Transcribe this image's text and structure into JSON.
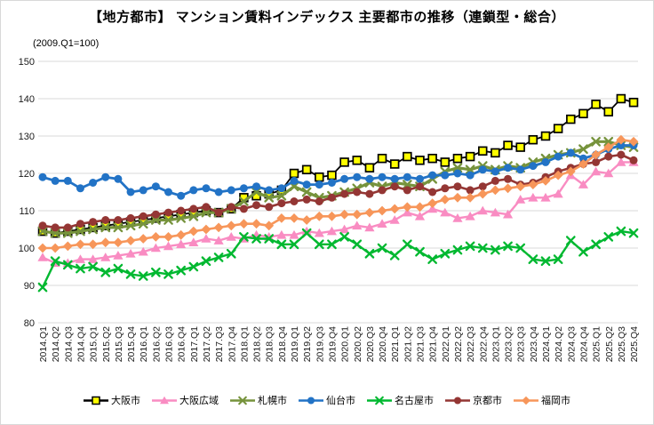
{
  "title": "【地方都市】 マンション賃料インデックス  主要都市の推移（連鎖型・総合）",
  "subtitle": "(2009.Q1=100)",
  "chart_data": {
    "type": "line",
    "title": "【地方都市】 マンション賃料インデックス  主要都市の推移（連鎖型・総合）",
    "axis_note": "(2009.Q1=100)",
    "ylim": [
      80,
      150
    ],
    "y_ticks": [
      80,
      90,
      100,
      110,
      120,
      130,
      140,
      150
    ],
    "grid": "horizontal",
    "legend_position": "bottom",
    "x_labels": [
      "2014.Q1",
      "2014.Q2",
      "2014.Q3",
      "2014.Q4",
      "2015.Q1",
      "2015.Q2",
      "2015.Q3",
      "2015.Q4",
      "2016.Q1",
      "2016.Q2",
      "2016.Q3",
      "2016.Q4",
      "2017.Q1",
      "2017.Q2",
      "2017.Q3",
      "2017.Q4",
      "2018.Q1",
      "2018.Q2",
      "2018.Q3",
      "2018.Q4",
      "2019.Q1",
      "2019.Q2",
      "2019.Q3",
      "2019.Q4",
      "2020.Q1",
      "2020.Q2",
      "2020.Q3",
      "2020.Q4",
      "2021.Q1",
      "2021.Q2",
      "2021.Q3",
      "2021.Q4",
      "2022.Q1",
      "2022.Q2",
      "2022.Q3",
      "2022.Q4",
      "2023.Q1",
      "2023.Q2",
      "2023.Q3",
      "2023.Q4",
      "2024.Q1",
      "2024.Q2",
      "2024.Q3",
      "2024.Q4",
      "2025.Q1",
      "2025.Q2",
      "2025.Q3",
      "2025.Q4"
    ],
    "series": [
      {
        "key": "osaka-city",
        "name": "大阪市",
        "color": "#000000",
        "marker": "square",
        "marker_fill": "#FFFF00",
        "values": [
          104.5,
          104,
          104.5,
          105,
          105.5,
          106,
          106.5,
          107,
          107.5,
          108,
          108.5,
          109,
          109.5,
          110,
          109.5,
          110.5,
          113.5,
          114,
          114.5,
          115.5,
          120,
          121,
          119,
          119.5,
          123,
          123.5,
          121.5,
          124,
          122.5,
          124.5,
          123.5,
          124,
          123,
          124,
          124.5,
          126,
          125.5,
          127.5,
          127,
          129,
          130,
          132,
          134.5,
          136,
          138.5,
          136.5,
          140,
          139
        ]
      },
      {
        "key": "osaka-region",
        "name": "大阪広域",
        "color": "#F98CC2",
        "marker": "triangle",
        "values": [
          97.5,
          96,
          96,
          97,
          97,
          97.5,
          98,
          98.5,
          99,
          100,
          100.5,
          101,
          101.5,
          102.5,
          102,
          103,
          102.5,
          103.5,
          103,
          103.5,
          103.5,
          104.5,
          104,
          104.5,
          105,
          106,
          105.5,
          106.5,
          107.5,
          109.5,
          108.5,
          110.5,
          109.5,
          108,
          108.5,
          110,
          109.5,
          109,
          113,
          113.5,
          113.5,
          114.5,
          119.5,
          117,
          120.5,
          120,
          123,
          123
        ]
      },
      {
        "key": "sapporo",
        "name": "札幌市",
        "color": "#76933C",
        "marker": "x",
        "values": [
          104.5,
          104,
          104,
          104.5,
          105,
          105.5,
          105.5,
          106,
          106.5,
          107.5,
          107.5,
          108,
          108.5,
          109.5,
          109.5,
          110.5,
          112.5,
          115,
          113.5,
          114,
          116.5,
          115,
          113.5,
          114,
          115,
          116,
          117.5,
          116.5,
          117.5,
          117,
          116.5,
          118.5,
          120.5,
          121.5,
          121,
          122,
          121,
          122,
          121.5,
          123,
          124,
          125,
          125.5,
          126.5,
          128.5,
          128.5,
          127.5,
          127
        ]
      },
      {
        "key": "sendai",
        "name": "仙台市",
        "color": "#2273C6",
        "marker": "circle",
        "values": [
          119,
          118,
          118,
          116,
          117.5,
          119,
          118.5,
          115,
          115.5,
          116.5,
          115,
          114,
          115.5,
          116,
          115,
          115.5,
          116,
          116.5,
          115.5,
          116,
          118,
          117,
          117,
          117.5,
          118.5,
          119,
          118.5,
          119,
          118.5,
          119,
          118.5,
          119.5,
          119.5,
          120,
          119.5,
          121,
          120.5,
          121.5,
          121,
          122,
          123,
          124.5,
          125.5,
          124,
          125,
          126.5,
          127.5,
          127.5
        ]
      },
      {
        "key": "nagoya",
        "name": "名古屋市",
        "color": "#00B830",
        "marker": "x",
        "values": [
          89.5,
          96.5,
          95.5,
          94.5,
          95,
          93.5,
          94.5,
          93,
          92.5,
          93.5,
          93,
          94,
          95,
          96.5,
          97.5,
          98.5,
          103,
          102.5,
          102.5,
          101,
          101,
          104,
          101,
          101,
          103,
          101,
          98.5,
          100,
          98,
          101,
          99,
          97,
          98.5,
          99.5,
          100.5,
          100,
          99.5,
          100.5,
          100,
          97,
          96.5,
          97,
          102,
          99,
          101,
          103,
          104.5,
          104
        ]
      },
      {
        "key": "kyoto",
        "name": "京都市",
        "color": "#943634",
        "marker": "circle",
        "values": [
          106,
          105.5,
          105.5,
          106.5,
          107,
          107.5,
          107.5,
          108,
          108.5,
          109,
          109.5,
          110,
          110.5,
          111,
          109.5,
          111,
          110.5,
          111.5,
          111,
          112,
          112.5,
          113,
          112.5,
          113.5,
          114.5,
          115,
          114.5,
          115.5,
          116.5,
          115.5,
          116.5,
          115,
          116,
          116.5,
          115.5,
          116.5,
          118,
          118.5,
          117,
          117.5,
          119,
          120.5,
          121.5,
          122.5,
          123,
          124.5,
          125,
          123.5
        ]
      },
      {
        "key": "fukuoka",
        "name": "福岡市",
        "color": "#F7965A",
        "marker": "diamond",
        "values": [
          100,
          100,
          100.5,
          101,
          101,
          101.5,
          101.5,
          102,
          102.5,
          103,
          103,
          103.5,
          104.5,
          105,
          105.5,
          106,
          106.5,
          106.5,
          106,
          108,
          108,
          107.5,
          108.5,
          108.5,
          109,
          109,
          109.5,
          110,
          110.5,
          111,
          111,
          112,
          113,
          113.5,
          113.5,
          114.5,
          115.5,
          116,
          116.5,
          117,
          118,
          119.5,
          120.5,
          122.5,
          125,
          127,
          129,
          128.5
        ]
      }
    ]
  }
}
